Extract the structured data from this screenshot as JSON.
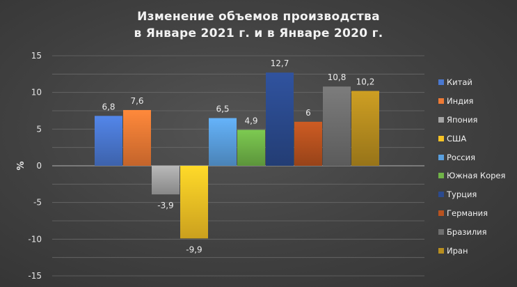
{
  "title_line1": "Изменение объемов производства",
  "title_line2": "в Январе 2021 г. и в Январе 2020 г.",
  "chart_data": {
    "type": "bar",
    "title": "Изменение объемов производства в Январе 2021 г. и в Январе 2020 г.",
    "xlabel": "",
    "ylabel": "%",
    "ylim": [
      -15,
      15
    ],
    "yticks": [
      15,
      10,
      5,
      0,
      -5,
      -10,
      -15
    ],
    "grid": true,
    "legend_position": "right",
    "categories": [
      "Китай",
      "Индия",
      "Япония",
      "США",
      "Россия",
      "Южная Корея",
      "Турция",
      "Германия",
      "Бразилия",
      "Иран"
    ],
    "values": [
      6.8,
      7.6,
      -3.9,
      -9.9,
      6.5,
      4.9,
      12.7,
      6,
      10.8,
      10.2
    ],
    "value_labels": [
      "6,8",
      "7,6",
      "-3,9",
      "-9,9",
      "6,5",
      "4,9",
      "12,7",
      "6",
      "10,8",
      "10,2"
    ],
    "colors": [
      "#4a78d0",
      "#ee7a35",
      "#a5a5a5",
      "#f7c325",
      "#5aa0df",
      "#70b448",
      "#2b4a8e",
      "#b8521f",
      "#6f6f6f",
      "#b88e1f"
    ]
  }
}
